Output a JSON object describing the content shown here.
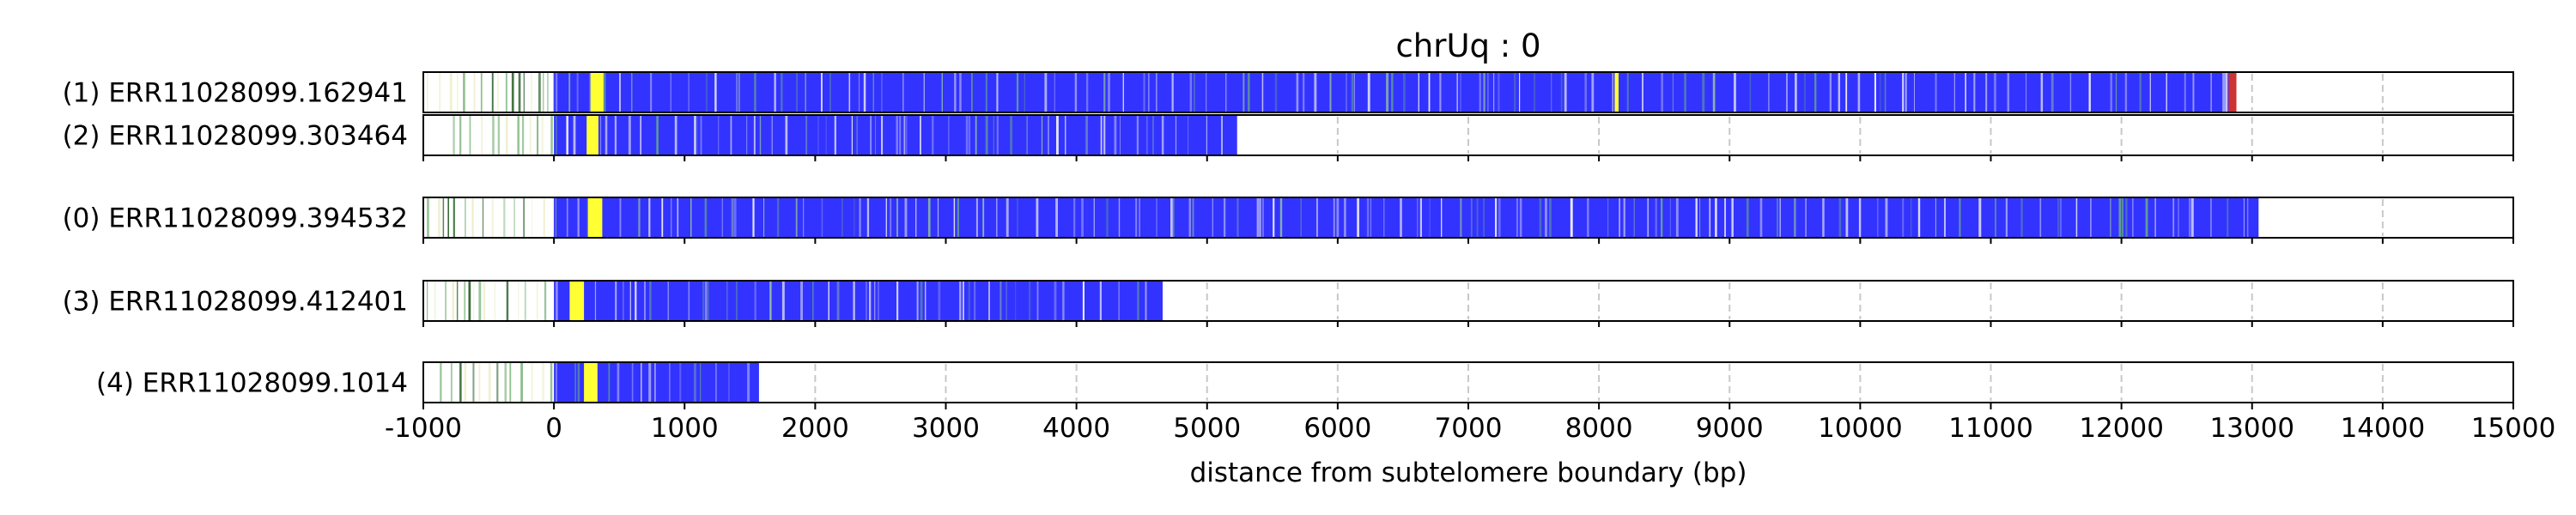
{
  "chart_data": {
    "type": "bar",
    "title": "chrUq : 0",
    "xlabel": "distance from subtelomere boundary (bp)",
    "ylabel": "",
    "xlim": [
      -1000,
      15000
    ],
    "xticks": [
      -1000,
      0,
      1000,
      2000,
      3000,
      4000,
      5000,
      6000,
      7000,
      8000,
      9000,
      10000,
      11000,
      12000,
      13000,
      14000,
      15000
    ],
    "grid": "vertical dashed",
    "colors": {
      "repeat": "#3333ff",
      "subtelomere_low": "#eeeecc",
      "subtelomere_mid": "#88bb88",
      "subtelomere_dark": "#336633",
      "highlight": "#ffff33",
      "accent": "#cc3333",
      "grid": "#c8c8c8"
    },
    "reads": [
      {
        "label": "(1) ERR11028099.162941",
        "start": -1000,
        "subtelomere_end": 0,
        "end": 12880,
        "group": 0,
        "highlights": [
          [
            280,
            380
          ],
          [
            8120,
            8150
          ]
        ],
        "end_marker": [
          12820,
          12880
        ]
      },
      {
        "label": "(2) ERR11028099.303464",
        "start": -800,
        "subtelomere_end": 0,
        "end": 5230,
        "group": 0,
        "highlights": [
          [
            250,
            340
          ]
        ],
        "end_marker": null
      },
      {
        "label": "(0) ERR11028099.394532",
        "start": -1000,
        "subtelomere_end": 0,
        "end": 13050,
        "group": 1,
        "highlights": [
          [
            260,
            370
          ]
        ],
        "end_marker": null
      },
      {
        "label": "(3) ERR11028099.412401",
        "start": -1000,
        "subtelomere_end": 0,
        "end": 4660,
        "group": 2,
        "highlights": [
          [
            120,
            230
          ]
        ],
        "end_marker": null
      },
      {
        "label": "(4) ERR11028099.1014",
        "start": -900,
        "subtelomere_end": 0,
        "end": 1570,
        "group": 3,
        "highlights": [
          [
            230,
            330
          ]
        ],
        "end_marker": null
      }
    ]
  }
}
